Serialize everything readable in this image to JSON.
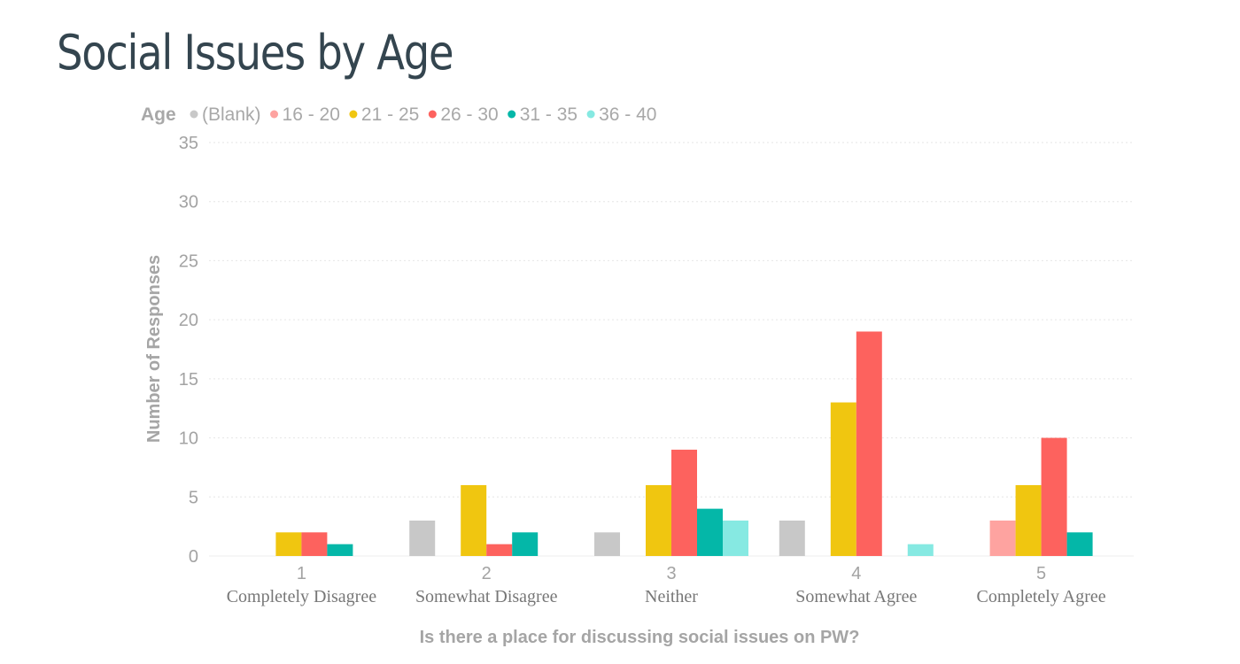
{
  "page": {
    "title": "Social Issues by Age"
  },
  "chart_data": {
    "type": "bar",
    "legend_title": "Age",
    "legend_position": "top-left",
    "categories": [
      "1",
      "2",
      "3",
      "4",
      "5"
    ],
    "category_labels": [
      "Completely Disagree",
      "Somewhat Disagree",
      "Neither",
      "Somewhat Agree",
      "Completely Agree"
    ],
    "xlabel": "Is there a place for discussing social issues on PW?",
    "ylabel": "Number of Responses",
    "ylim": [
      0,
      35
    ],
    "yticks": [
      0,
      5,
      10,
      15,
      20,
      25,
      30,
      35
    ],
    "grid": true,
    "series": [
      {
        "name": "(Blank)",
        "color": "#c8c8c8",
        "values": [
          0,
          3,
          2,
          3,
          0
        ]
      },
      {
        "name": "16 - 20",
        "color": "#fea3a0",
        "values": [
          0,
          0,
          0,
          0,
          3
        ]
      },
      {
        "name": "21 - 25",
        "color": "#f0c610",
        "values": [
          2,
          6,
          6,
          13,
          6
        ]
      },
      {
        "name": "26 - 30",
        "color": "#fd625e",
        "values": [
          2,
          1,
          9,
          19,
          10
        ]
      },
      {
        "name": "31 - 35",
        "color": "#04b7a8",
        "values": [
          1,
          2,
          4,
          0,
          2
        ]
      },
      {
        "name": "36 - 40",
        "color": "#86e9e2",
        "values": [
          0,
          0,
          3,
          1,
          0
        ]
      }
    ]
  }
}
